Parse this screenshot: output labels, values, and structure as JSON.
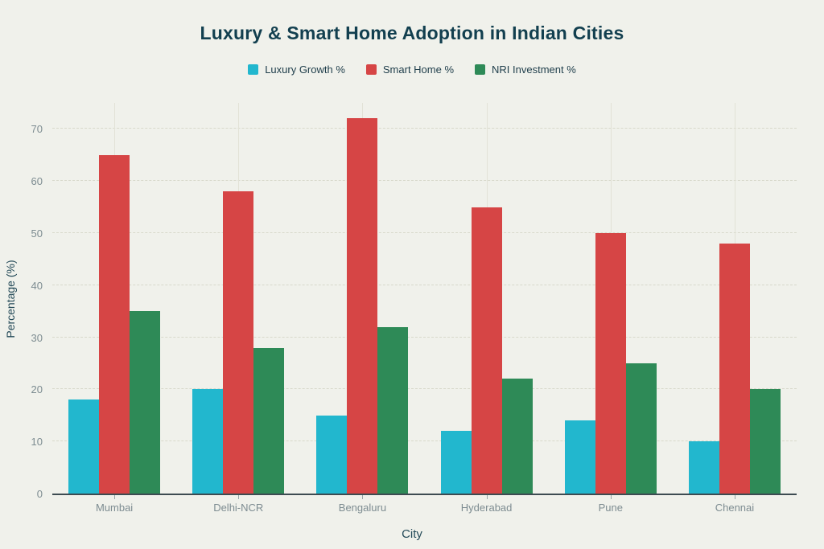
{
  "chart_data": {
    "type": "bar",
    "title": "Luxury & Smart Home Adoption in Indian Cities",
    "xlabel": "City",
    "ylabel": "Percentage (%)",
    "categories": [
      "Mumbai",
      "Delhi-NCR",
      "Bengaluru",
      "Hyderabad",
      "Pune",
      "Chennai"
    ],
    "series": [
      {
        "name": "Luxury Growth %",
        "color": "#22b7ce",
        "values": [
          18,
          20,
          15,
          12,
          14,
          10
        ]
      },
      {
        "name": "Smart Home %",
        "color": "#d64545",
        "values": [
          65,
          58,
          72,
          55,
          50,
          48
        ]
      },
      {
        "name": "NRI Investment %",
        "color": "#2e8a57",
        "values": [
          35,
          28,
          32,
          22,
          25,
          20
        ]
      }
    ],
    "yticks": [
      0,
      10,
      20,
      30,
      40,
      50,
      60,
      70
    ],
    "ylim": [
      0,
      75
    ],
    "grid": true,
    "legend_position": "top"
  },
  "style": {
    "background": "#f0f1eb",
    "title_color": "#123f4f",
    "axis_title_color": "#244a58",
    "tick_label_color": "#7d8c91",
    "grid_color": "#d8d9cb",
    "axis_line_color": "#3d4b51"
  }
}
